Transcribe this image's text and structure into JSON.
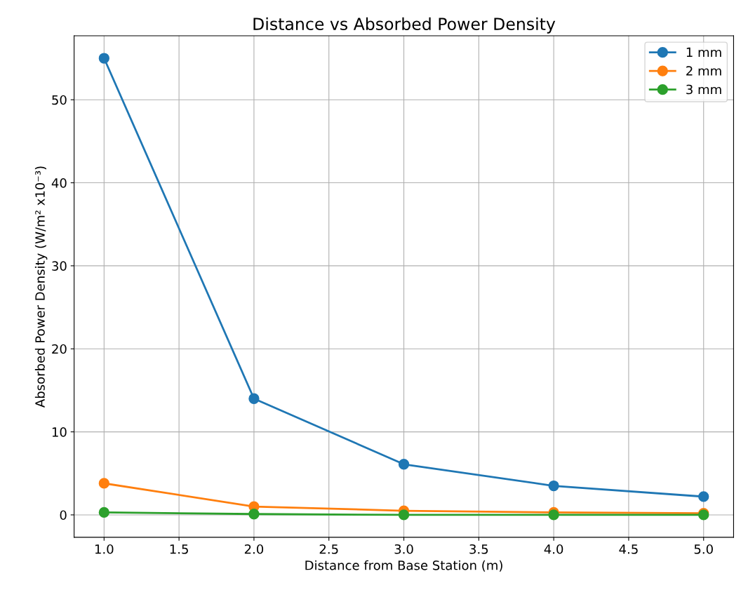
{
  "chart_data": {
    "type": "line",
    "title": "Distance vs Absorbed Power Density",
    "xlabel": "Distance from Base Station (m)",
    "ylabel": "Absorbed Power Density (W/m² x10⁻³)",
    "x": [
      1.0,
      2.0,
      3.0,
      4.0,
      5.0
    ],
    "series": [
      {
        "name": "1 mm",
        "color": "#1f77b4",
        "values": [
          55.0,
          14.0,
          6.1,
          3.5,
          2.2
        ]
      },
      {
        "name": "2 mm",
        "color": "#ff7f0e",
        "values": [
          3.8,
          1.0,
          0.5,
          0.3,
          0.2
        ]
      },
      {
        "name": "3 mm",
        "color": "#2ca02c",
        "values": [
          0.3,
          0.1,
          0.0,
          0.0,
          0.0
        ]
      }
    ],
    "xlim": [
      0.8,
      5.2
    ],
    "ylim": [
      -2.7,
      57.7
    ],
    "xticks": [
      {
        "value": 1.0,
        "label": "1.0"
      },
      {
        "value": 1.5,
        "label": "1.5"
      },
      {
        "value": 2.0,
        "label": "2.0"
      },
      {
        "value": 2.5,
        "label": "2.5"
      },
      {
        "value": 3.0,
        "label": "3.0"
      },
      {
        "value": 3.5,
        "label": "3.5"
      },
      {
        "value": 4.0,
        "label": "4.0"
      },
      {
        "value": 4.5,
        "label": "4.5"
      },
      {
        "value": 5.0,
        "label": "5.0"
      }
    ],
    "yticks": [
      0,
      10,
      20,
      30,
      40,
      50
    ],
    "grid": true,
    "legend": "top right",
    "marker": "circle",
    "line_style": "solid"
  }
}
